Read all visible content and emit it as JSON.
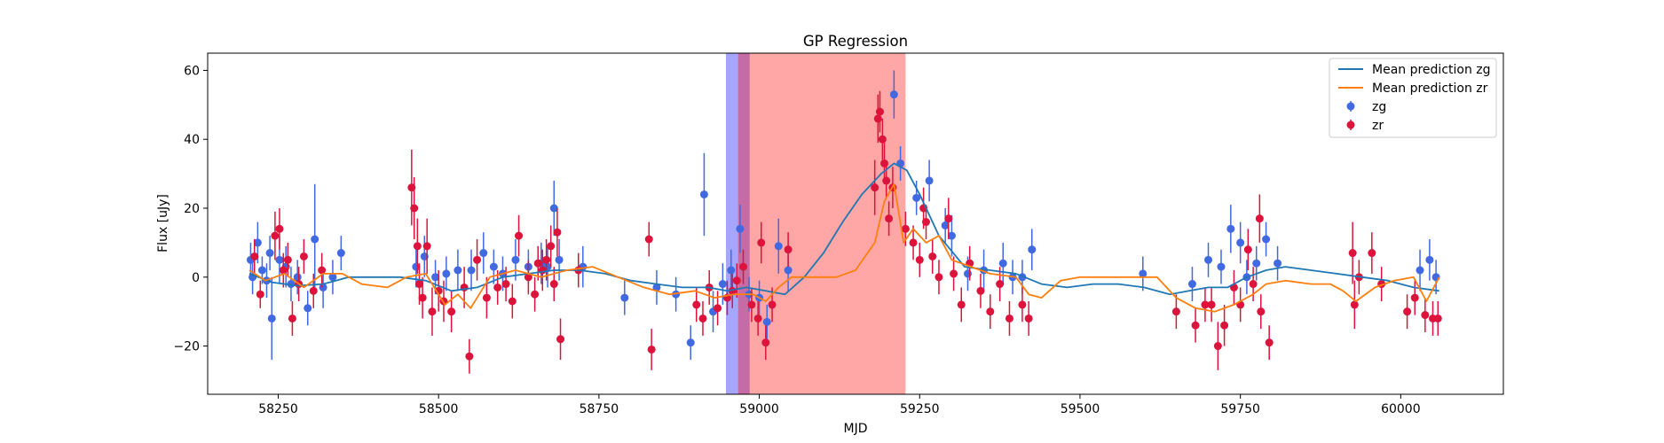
{
  "chart_data": {
    "type": "scatter",
    "title": "GP Regression",
    "xlabel": "MJD",
    "ylabel": "Flux [uJy]",
    "xlim": [
      58140,
      60160
    ],
    "ylim": [
      -34,
      65
    ],
    "xticks": [
      58250,
      58500,
      58750,
      59000,
      59250,
      59500,
      59750,
      60000
    ],
    "yticks": [
      -20,
      0,
      20,
      40,
      60
    ],
    "grid": false,
    "legend_position": "top-right",
    "shaded_regions": [
      {
        "x0": 58948,
        "x1": 58985,
        "color": "#0000ff",
        "opacity": 0.35
      },
      {
        "x0": 58967,
        "x1": 59228,
        "color": "#ff0000",
        "opacity": 0.35
      }
    ],
    "series": [
      {
        "name": "Mean prediction zg",
        "kind": "line",
        "color": "#1f77b4",
        "x": [
          58205,
          58240,
          58280,
          58320,
          58360,
          58400,
          58440,
          58480,
          58520,
          58560,
          58600,
          58640,
          58680,
          58720,
          58760,
          58800,
          58840,
          58880,
          58920,
          58950,
          58980,
          59010,
          59040,
          59070,
          59100,
          59130,
          59160,
          59190,
          59210,
          59230,
          59250,
          59280,
          59320,
          59360,
          59400,
          59440,
          59480,
          59520,
          59560,
          59600,
          59640,
          59670,
          59700,
          59730,
          59760,
          59790,
          59820,
          59860,
          59900,
          59940,
          59980,
          60020,
          60060
        ],
        "y": [
          1,
          -1.5,
          -2.5,
          -2,
          0,
          0,
          0,
          -1,
          -4,
          -3,
          0,
          1,
          2,
          2,
          1,
          -1,
          -2,
          -3,
          -3,
          -4,
          -3,
          -4,
          -5,
          0,
          7,
          16,
          24,
          30,
          33,
          31,
          24,
          12,
          3,
          2,
          1,
          -2,
          -3,
          -2,
          -2,
          -3,
          -5,
          -4,
          -3,
          -3,
          0,
          2,
          3,
          2,
          1,
          0,
          -1,
          -3,
          -4
        ]
      },
      {
        "name": "Mean prediction zr",
        "kind": "line",
        "color": "#ff7f0e",
        "x": [
          58205,
          58230,
          58260,
          58290,
          58320,
          58350,
          58380,
          58420,
          58450,
          58480,
          58510,
          58530,
          58550,
          58580,
          58620,
          58660,
          58700,
          58740,
          58780,
          58820,
          58860,
          58900,
          58930,
          58960,
          58990,
          59010,
          59030,
          59050,
          59080,
          59120,
          59150,
          59180,
          59195,
          59210,
          59225,
          59240,
          59260,
          59280,
          59300,
          59330,
          59360,
          59400,
          59420,
          59440,
          59470,
          59500,
          59540,
          59580,
          59620,
          59650,
          59680,
          59710,
          59740,
          59770,
          59790,
          59820,
          59860,
          59890,
          59910,
          59930,
          59960,
          59990,
          60020,
          60040,
          60060
        ],
        "y": [
          2,
          -1,
          1,
          -3,
          1,
          1,
          -2,
          -3,
          0,
          1,
          -8,
          -5,
          -9,
          0,
          2,
          0,
          2,
          3,
          0,
          -3,
          -5,
          -4,
          -6,
          -5,
          -5,
          -7,
          -3,
          0,
          0,
          0,
          2,
          10,
          22,
          27,
          10,
          14,
          10,
          12,
          5,
          3,
          1,
          0,
          -5,
          -6,
          -1,
          0,
          0,
          0,
          0,
          -6,
          -9,
          -10,
          -8,
          -5,
          -2,
          -1,
          -2,
          -2,
          -4,
          -7,
          -3,
          -1,
          0,
          -7,
          0
        ]
      },
      {
        "name": "zg",
        "kind": "errorbar",
        "color": "#4169e1",
        "x": [
          58207,
          58210,
          58218,
          58225,
          58232,
          58237,
          58240,
          58252,
          58262,
          58270,
          58280,
          58296,
          58307,
          58320,
          58335,
          58348,
          58465,
          58478,
          58495,
          58512,
          58530,
          58551,
          58570,
          58586,
          58600,
          58620,
          58640,
          58660,
          58670,
          58680,
          58688,
          58725,
          58790,
          58840,
          58870,
          58893,
          58914,
          58928,
          58943,
          58956,
          58970,
          58984,
          59000,
          59012,
          59030,
          59045,
          59210,
          59220,
          59245,
          59265,
          59290,
          59300,
          59325,
          59350,
          59380,
          59395,
          59410,
          59425,
          59598,
          59675,
          59700,
          59720,
          59735,
          59750,
          59760,
          59775,
          59790,
          59808,
          60030,
          60045,
          60055
        ],
        "y": [
          5,
          0,
          10,
          2,
          -1,
          7,
          -12,
          5,
          3,
          -2,
          0,
          -9,
          11,
          -3,
          0,
          7,
          3,
          6,
          0,
          1,
          2,
          2,
          7,
          3,
          1,
          5,
          3,
          4,
          3,
          20,
          5,
          3,
          -6,
          -3,
          -5,
          -19,
          24,
          -10,
          -2,
          2,
          14,
          -5,
          -6,
          -13,
          9,
          2,
          53,
          33,
          23,
          28,
          15,
          12,
          1,
          2,
          4,
          0,
          0,
          8,
          1,
          -2,
          5,
          3,
          14,
          10,
          0,
          4,
          11,
          4,
          2,
          5,
          0
        ],
        "err": [
          5,
          5,
          6,
          4,
          5,
          5,
          12,
          7,
          6,
          5,
          5,
          5,
          16,
          6,
          5,
          5,
          6,
          6,
          5,
          5,
          6,
          6,
          6,
          5,
          5,
          6,
          5,
          6,
          6,
          8,
          6,
          6,
          5,
          5,
          5,
          5,
          12,
          6,
          6,
          6,
          7,
          5,
          5,
          5,
          8,
          6,
          7,
          5,
          5,
          6,
          5,
          6,
          5,
          6,
          6,
          5,
          5,
          6,
          5,
          5,
          5,
          5,
          7,
          6,
          5,
          5,
          5,
          5,
          6,
          6,
          5
        ]
      },
      {
        "name": "zr",
        "kind": "errorbar",
        "color": "#dc143c",
        "x": [
          58213,
          58222,
          58245,
          58252,
          58258,
          58265,
          58272,
          58282,
          58290,
          58305,
          58318,
          58458,
          58462,
          58467,
          58470,
          58475,
          58482,
          58490,
          58500,
          58508,
          58520,
          58540,
          58548,
          58560,
          58575,
          58592,
          58605,
          58615,
          58625,
          58640,
          58650,
          58655,
          58662,
          58668,
          58675,
          58680,
          58685,
          58690,
          58718,
          58828,
          58832,
          58902,
          58912,
          58922,
          58935,
          58950,
          58958,
          58965,
          58975,
          58988,
          58998,
          59003,
          59010,
          59020,
          59045,
          59180,
          59185,
          59188,
          59192,
          59195,
          59198,
          59202,
          59208,
          59228,
          59240,
          59250,
          59256,
          59260,
          59270,
          59280,
          59295,
          59303,
          59315,
          59328,
          59345,
          59360,
          59375,
          59390,
          59410,
          59420,
          59650,
          59680,
          59695,
          59705,
          59715,
          59725,
          59740,
          59750,
          59762,
          59770,
          59780,
          59782,
          59795,
          59925,
          59928,
          59935,
          59955,
          59970,
          60010,
          60022,
          60038,
          60050,
          60058
        ],
        "y": [
          6,
          -5,
          12,
          14,
          2,
          5,
          -12,
          -2,
          6,
          -4,
          2,
          26,
          20,
          9,
          -2,
          -6,
          9,
          -10,
          -4,
          -7,
          -10,
          -3,
          -23,
          5,
          -6,
          -3,
          -2,
          -7,
          12,
          0,
          -5,
          4,
          2,
          5,
          9,
          -2,
          13,
          -18,
          2,
          11,
          -21,
          -8,
          -12,
          -3,
          -9,
          -6,
          -4,
          -1,
          3,
          -8,
          -12,
          10,
          -19,
          -8,
          8,
          26,
          46,
          48,
          40,
          33,
          28,
          17,
          26,
          14,
          10,
          5,
          20,
          16,
          6,
          0,
          17,
          1,
          -8,
          4,
          -4,
          -10,
          -2,
          -12,
          -8,
          -12,
          -10,
          -14,
          -8,
          -8,
          -20,
          -14,
          -3,
          -8,
          8,
          -2,
          17,
          -10,
          -19,
          7,
          -8,
          0,
          7,
          -2,
          -10,
          -6,
          -11,
          -12,
          -12
        ],
        "err": [
          5,
          4,
          7,
          6,
          5,
          5,
          5,
          5,
          5,
          5,
          5,
          11,
          9,
          8,
          6,
          6,
          8,
          7,
          6,
          6,
          6,
          6,
          5,
          6,
          6,
          5,
          5,
          5,
          6,
          5,
          5,
          5,
          6,
          6,
          6,
          5,
          7,
          6,
          5,
          5,
          6,
          5,
          5,
          5,
          5,
          5,
          5,
          5,
          5,
          5,
          5,
          6,
          5,
          5,
          5,
          8,
          7,
          6,
          6,
          6,
          5,
          5,
          6,
          5,
          5,
          5,
          6,
          5,
          5,
          5,
          6,
          5,
          5,
          5,
          5,
          5,
          5,
          5,
          5,
          5,
          5,
          5,
          5,
          5,
          7,
          6,
          5,
          5,
          6,
          5,
          7,
          5,
          5,
          9,
          7,
          5,
          6,
          5,
          5,
          5,
          5,
          5,
          5
        ]
      }
    ]
  }
}
